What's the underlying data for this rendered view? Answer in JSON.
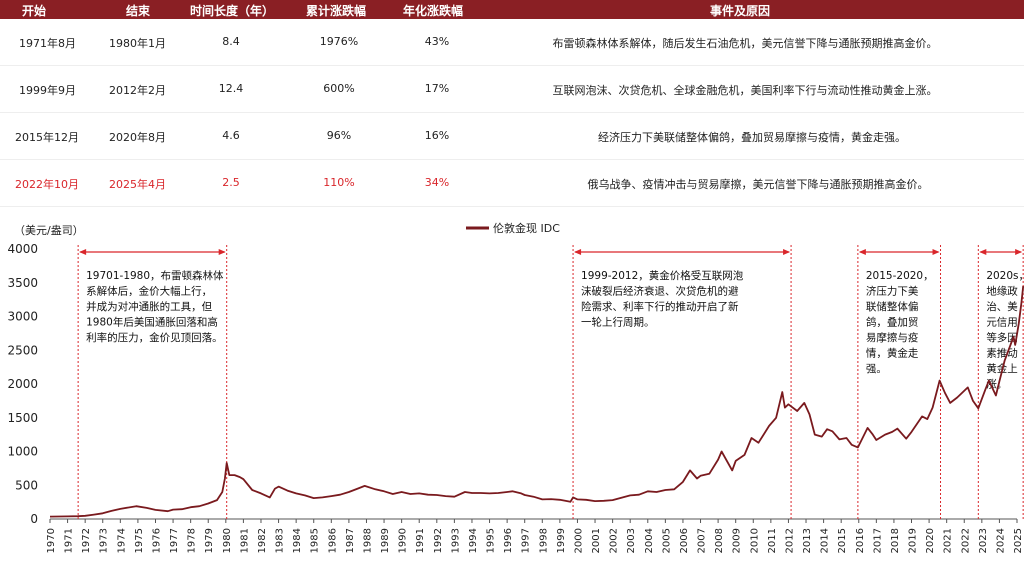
{
  "table": {
    "headers": [
      "开始",
      "结束",
      "时间长度（年）",
      "累计涨跌幅",
      "年化涨跌幅",
      "事件及原因"
    ],
    "rows": [
      {
        "start": "1971年8月",
        "end": "1980年1月",
        "years": "8.4",
        "cum": "1976%",
        "ann": "43%",
        "event": "布雷顿森林体系解体，随后发生石油危机，美元信誉下降与通胀预期推高金价。",
        "highlight": false
      },
      {
        "start": "1999年9月",
        "end": "2012年2月",
        "years": "12.4",
        "cum": "600%",
        "ann": "17%",
        "event": "互联网泡沫、次贷危机、全球金融危机，美国利率下行与流动性推动黄金上涨。",
        "highlight": false
      },
      {
        "start": "2015年12月",
        "end": "2020年8月",
        "years": "4.6",
        "cum": "96%",
        "ann": "16%",
        "event": "经济压力下美联储整体偏鸽，叠加贸易摩擦与疫情，黄金走强。",
        "highlight": false
      },
      {
        "start": "2022年10月",
        "end": "2025年4月",
        "years": "2.5",
        "cum": "110%",
        "ann": "34%",
        "event": "俄乌战争、疫情冲击与贸易摩擦，美元信誉下降与通胀预期推高金价。",
        "highlight": true
      }
    ]
  },
  "chart_data": {
    "type": "line",
    "unit_label": "（美元/盎司）",
    "series_name": "伦敦金现 IDC",
    "ylim": [
      0,
      4000
    ],
    "yticks": [
      0,
      500,
      1000,
      1500,
      2000,
      2500,
      3000,
      3500,
      4000
    ],
    "xlim": [
      1970,
      2025
    ],
    "x_tick_labels": [
      "1970",
      "1971",
      "1972",
      "1973",
      "1974",
      "1975",
      "1976",
      "1977",
      "1978",
      "1979",
      "1980",
      "1981",
      "1982",
      "1983",
      "1984",
      "1985",
      "1986",
      "1987",
      "1988",
      "1989",
      "1990",
      "1991",
      "1992",
      "1993",
      "1994",
      "1995",
      "1996",
      "1997",
      "1998",
      "1999",
      "2000",
      "2001",
      "2002",
      "2003",
      "2004",
      "2005",
      "2006",
      "2007",
      "2008",
      "2009",
      "2010",
      "2011",
      "2012",
      "2013",
      "2014",
      "2015",
      "2016",
      "2017",
      "2018",
      "2019",
      "2020",
      "2021",
      "2022",
      "2023",
      "2024",
      "2025"
    ],
    "line_color": "#7a1a1e",
    "accent_color": "#d9262b",
    "points": [
      [
        1970.0,
        35
      ],
      [
        1971.0,
        38
      ],
      [
        1971.6,
        42
      ],
      [
        1972.0,
        48
      ],
      [
        1972.5,
        65
      ],
      [
        1973.0,
        85
      ],
      [
        1973.5,
        120
      ],
      [
        1974.0,
        150
      ],
      [
        1974.9,
        190
      ],
      [
        1975.5,
        165
      ],
      [
        1976.0,
        135
      ],
      [
        1976.7,
        115
      ],
      [
        1977.0,
        140
      ],
      [
        1977.5,
        145
      ],
      [
        1978.0,
        175
      ],
      [
        1978.5,
        190
      ],
      [
        1979.0,
        230
      ],
      [
        1979.5,
        280
      ],
      [
        1979.8,
        400
      ],
      [
        1979.95,
        600
      ],
      [
        1980.05,
        830
      ],
      [
        1980.2,
        650
      ],
      [
        1980.5,
        650
      ],
      [
        1980.8,
        620
      ],
      [
        1981.0,
        590
      ],
      [
        1981.5,
        430
      ],
      [
        1982.0,
        380
      ],
      [
        1982.5,
        320
      ],
      [
        1982.8,
        450
      ],
      [
        1983.0,
        480
      ],
      [
        1983.5,
        420
      ],
      [
        1984.0,
        380
      ],
      [
        1984.5,
        350
      ],
      [
        1985.0,
        310
      ],
      [
        1985.5,
        320
      ],
      [
        1986.0,
        340
      ],
      [
        1986.5,
        360
      ],
      [
        1987.0,
        400
      ],
      [
        1987.5,
        450
      ],
      [
        1987.9,
        490
      ],
      [
        1988.5,
        440
      ],
      [
        1989.0,
        410
      ],
      [
        1989.5,
        370
      ],
      [
        1990.0,
        400
      ],
      [
        1990.5,
        370
      ],
      [
        1991.0,
        380
      ],
      [
        1991.5,
        360
      ],
      [
        1992.0,
        355
      ],
      [
        1992.5,
        340
      ],
      [
        1993.0,
        330
      ],
      [
        1993.6,
        400
      ],
      [
        1994.0,
        385
      ],
      [
        1994.5,
        385
      ],
      [
        1995.0,
        380
      ],
      [
        1995.5,
        385
      ],
      [
        1996.0,
        400
      ],
      [
        1996.3,
        410
      ],
      [
        1996.8,
        380
      ],
      [
        1997.0,
        355
      ],
      [
        1997.5,
        330
      ],
      [
        1998.0,
        290
      ],
      [
        1998.5,
        295
      ],
      [
        1999.0,
        285
      ],
      [
        1999.6,
        255
      ],
      [
        1999.75,
        320
      ],
      [
        2000.0,
        290
      ],
      [
        2000.5,
        285
      ],
      [
        2001.0,
        265
      ],
      [
        2001.5,
        270
      ],
      [
        2002.0,
        280
      ],
      [
        2002.5,
        315
      ],
      [
        2003.0,
        350
      ],
      [
        2003.5,
        360
      ],
      [
        2004.0,
        410
      ],
      [
        2004.5,
        400
      ],
      [
        2005.0,
        430
      ],
      [
        2005.5,
        440
      ],
      [
        2006.0,
        550
      ],
      [
        2006.4,
        720
      ],
      [
        2006.8,
        600
      ],
      [
        2007.0,
        640
      ],
      [
        2007.5,
        670
      ],
      [
        2008.0,
        880
      ],
      [
        2008.2,
        1000
      ],
      [
        2008.8,
        720
      ],
      [
        2009.0,
        860
      ],
      [
        2009.5,
        950
      ],
      [
        2009.9,
        1200
      ],
      [
        2010.3,
        1130
      ],
      [
        2010.9,
        1380
      ],
      [
        2011.3,
        1500
      ],
      [
        2011.65,
        1880
      ],
      [
        2011.8,
        1650
      ],
      [
        2012.0,
        1700
      ],
      [
        2012.5,
        1600
      ],
      [
        2012.9,
        1720
      ],
      [
        2013.2,
        1550
      ],
      [
        2013.5,
        1250
      ],
      [
        2013.9,
        1220
      ],
      [
        2014.2,
        1330
      ],
      [
        2014.5,
        1300
      ],
      [
        2014.9,
        1180
      ],
      [
        2015.3,
        1200
      ],
      [
        2015.6,
        1100
      ],
      [
        2015.95,
        1060
      ],
      [
        2016.5,
        1350
      ],
      [
        2016.8,
        1250
      ],
      [
        2017.0,
        1170
      ],
      [
        2017.5,
        1250
      ],
      [
        2017.9,
        1290
      ],
      [
        2018.2,
        1340
      ],
      [
        2018.7,
        1190
      ],
      [
        2019.0,
        1290
      ],
      [
        2019.6,
        1520
      ],
      [
        2019.9,
        1480
      ],
      [
        2020.2,
        1650
      ],
      [
        2020.6,
        2050
      ],
      [
        2020.9,
        1870
      ],
      [
        2021.2,
        1720
      ],
      [
        2021.6,
        1800
      ],
      [
        2022.2,
        1950
      ],
      [
        2022.5,
        1750
      ],
      [
        2022.8,
        1640
      ],
      [
        2023.2,
        1920
      ],
      [
        2023.4,
        2050
      ],
      [
        2023.8,
        1830
      ],
      [
        2024.0,
        2040
      ],
      [
        2024.3,
        2350
      ],
      [
        2024.8,
        2700
      ],
      [
        2024.9,
        2580
      ],
      [
        2025.1,
        2900
      ],
      [
        2025.25,
        3200
      ],
      [
        2025.35,
        3450
      ]
    ],
    "cycles": [
      {
        "start": 1971.6,
        "end": 1980.05,
        "text_lines": [
          "19701-1980，布雷顿森林体",
          "系解体后，金价大幅上行，",
          "并成为对冲通胀的工具，但",
          "1980年后美国通胀回落和高",
          "利率的压力，金价见顶回落。"
        ]
      },
      {
        "start": 1999.75,
        "end": 2012.15,
        "text_lines": [
          "1999-2012，黄金价格受互联网泡",
          "沫破裂后经济衰退、次贷危机的避",
          "险需求、利率下行的推动开启了新",
          "一轮上行周期。"
        ]
      },
      {
        "start": 2015.95,
        "end": 2020.65,
        "text_lines": [
          "2015-2020，",
          "济压力下美",
          "联储整体偏",
          "鸽，叠加贸",
          "易摩擦与疫",
          "情，黄金走",
          "强。"
        ]
      },
      {
        "start": 2022.8,
        "end": 2025.35,
        "text_lines": [
          "2020s，",
          "地缘政",
          "治、美",
          "元信用",
          "等多因",
          "素推动",
          "黄金上",
          "涨。"
        ]
      }
    ]
  }
}
